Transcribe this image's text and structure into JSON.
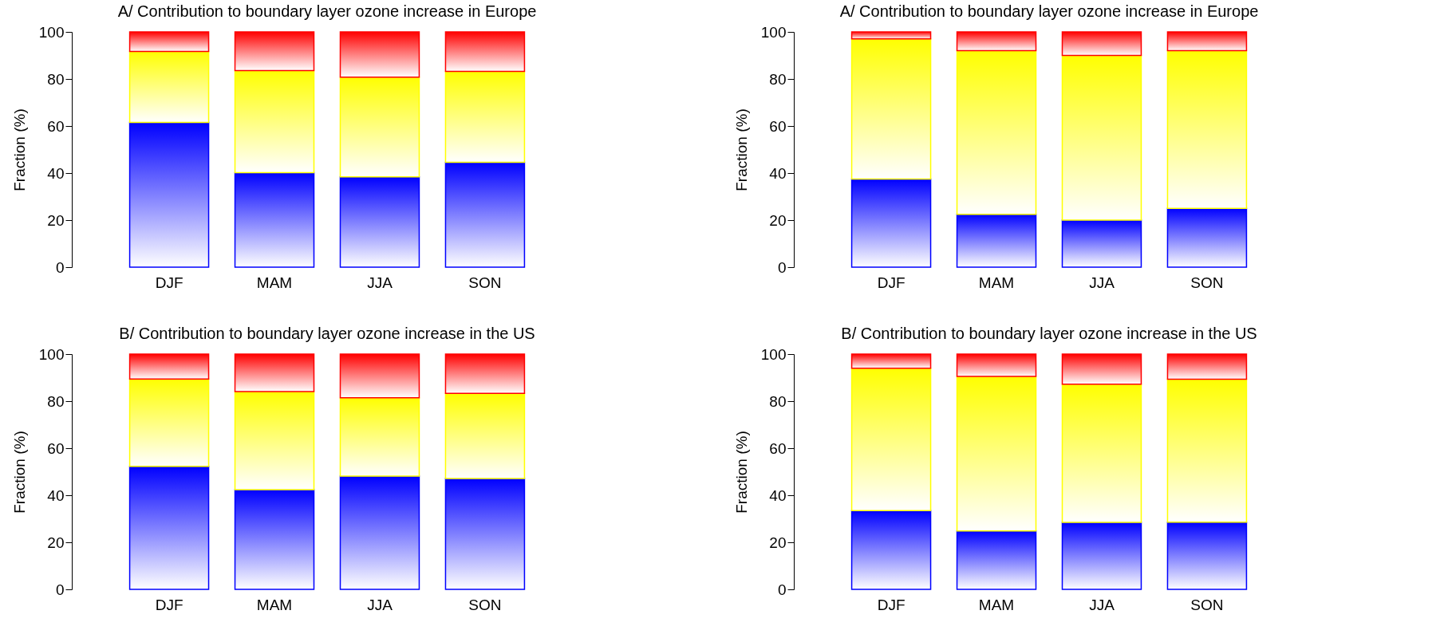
{
  "chart_data": [
    {
      "type": "bar",
      "stacked": true,
      "title": "A/ Contribution to boundary layer ozone increase in Europe",
      "ylabel": "Fraction (%)",
      "categories": [
        "DJF",
        "MAM",
        "JJA",
        "SON"
      ],
      "ylim": [
        0,
        100
      ],
      "yticks": [
        0,
        20,
        40,
        60,
        80,
        100
      ],
      "grid": false,
      "series": [
        {
          "color": "#0000ff",
          "values": [
            61.5,
            40.2,
            38.4,
            44.6
          ]
        },
        {
          "color": "#ffff00",
          "values": [
            30.2,
            43.4,
            42.4,
            38.6
          ]
        },
        {
          "color": "#ff0000",
          "values": [
            8.3,
            16.4,
            19.2,
            16.8
          ]
        }
      ]
    },
    {
      "type": "bar",
      "stacked": true,
      "title": "A/ Contribution to boundary layer ozone increase in Europe",
      "ylabel": "Fraction (%)",
      "categories": [
        "DJF",
        "MAM",
        "JJA",
        "SON"
      ],
      "ylim": [
        0,
        100
      ],
      "yticks": [
        0,
        20,
        40,
        60,
        80,
        100
      ],
      "grid": false,
      "series": [
        {
          "color": "#0000ff",
          "values": [
            37.5,
            22.5,
            20,
            25
          ]
        },
        {
          "color": "#ffff00",
          "values": [
            59.5,
            69.5,
            70,
            67
          ]
        },
        {
          "color": "#ff0000",
          "values": [
            3,
            8,
            10,
            8
          ]
        }
      ]
    },
    {
      "type": "bar",
      "stacked": true,
      "title": "B/ Contribution to boundary layer ozone increase in the US",
      "ylabel": "Fraction (%)",
      "categories": [
        "DJF",
        "MAM",
        "JJA",
        "SON"
      ],
      "ylim": [
        0,
        100
      ],
      "yticks": [
        0,
        20,
        40,
        60,
        80,
        100
      ],
      "grid": false,
      "series": [
        {
          "color": "#0000ff",
          "values": [
            52.3,
            42.4,
            48.1,
            47.1
          ]
        },
        {
          "color": "#ffff00",
          "values": [
            37.1,
            41.7,
            33.3,
            36.2
          ]
        },
        {
          "color": "#ff0000",
          "values": [
            10.6,
            15.9,
            18.6,
            16.7
          ]
        }
      ]
    },
    {
      "type": "bar",
      "stacked": true,
      "title": "B/ Contribution to boundary layer ozone increase in the US",
      "ylabel": "Fraction (%)",
      "categories": [
        "DJF",
        "MAM",
        "JJA",
        "SON"
      ],
      "ylim": [
        0,
        100
      ],
      "yticks": [
        0,
        20,
        40,
        60,
        80,
        100
      ],
      "grid": false,
      "series": [
        {
          "color": "#0000ff",
          "values": [
            33.5,
            24.8,
            28.5,
            28.6
          ]
        },
        {
          "color": "#ffff00",
          "values": [
            60.5,
            65.7,
            58.7,
            60.7
          ]
        },
        {
          "color": "#ff0000",
          "values": [
            6,
            9.5,
            12.8,
            10.7
          ]
        }
      ]
    }
  ]
}
